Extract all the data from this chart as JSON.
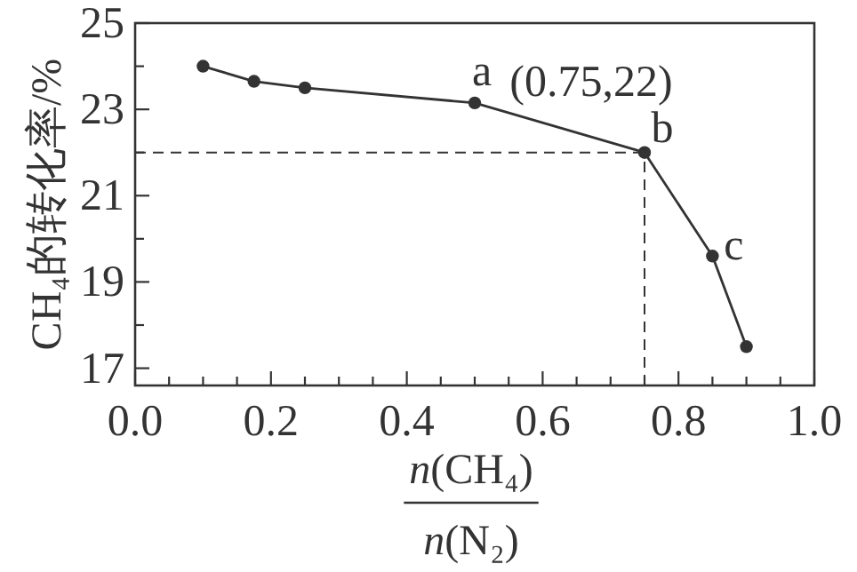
{
  "chart_data": {
    "type": "line",
    "xlabel": "n(CH₄)/n(N₂)",
    "ylabel": "CH₄的转化率/%",
    "x": [
      0.1,
      0.175,
      0.25,
      0.5,
      0.75,
      0.85,
      0.9
    ],
    "series": [
      {
        "color": "#333333",
        "values": [
          24.0,
          23.65,
          23.5,
          23.15,
          22.0,
          19.6,
          17.5
        ]
      }
    ],
    "marker": "circle",
    "line_style": "solid",
    "xlim": [
      0,
      1
    ],
    "ylim": [
      16.6,
      25
    ],
    "xticks": [
      {
        "value": 0,
        "label": "0.0"
      },
      {
        "value": 0.05,
        "label": null
      },
      {
        "value": 0.1,
        "label": null
      },
      {
        "value": 0.15,
        "label": null
      },
      {
        "value": 0.2,
        "label": "0.2"
      },
      {
        "value": 0.25,
        "label": null
      },
      {
        "value": 0.3,
        "label": null
      },
      {
        "value": 0.35,
        "label": null
      },
      {
        "value": 0.4,
        "label": "0.4"
      },
      {
        "value": 0.45,
        "label": null
      },
      {
        "value": 0.5,
        "label": null
      },
      {
        "value": 0.55,
        "label": null
      },
      {
        "value": 0.6,
        "label": "0.6"
      },
      {
        "value": 0.65,
        "label": null
      },
      {
        "value": 0.7,
        "label": null
      },
      {
        "value": 0.75,
        "label": null
      },
      {
        "value": 0.8,
        "label": "0.8"
      },
      {
        "value": 0.85,
        "label": null
      },
      {
        "value": 0.9,
        "label": null
      },
      {
        "value": 0.95,
        "label": null
      },
      {
        "value": 1.0,
        "label": "1.0"
      }
    ],
    "yticks": [
      17,
      {
        "value": 18,
        "label": null
      },
      19,
      {
        "value": 20,
        "label": null
      },
      21,
      {
        "value": 22,
        "label": null
      },
      23,
      {
        "value": 24,
        "label": null
      },
      25
    ],
    "ref_lines": [
      {
        "axis": "x",
        "value": 0.75,
        "line_style": "dashed"
      },
      {
        "axis": "y",
        "value": 22,
        "line_style": "dashed"
      }
    ],
    "annotations": [
      {
        "text": "a",
        "x": 0.5,
        "y": 23.15
      },
      {
        "text": "b",
        "x": 0.75,
        "y": 22
      },
      {
        "text": "c",
        "x": 0.85,
        "y": 19.6
      },
      {
        "text": "(0.75,22)",
        "x": 0.75,
        "y": 22
      }
    ],
    "grid": false
  }
}
